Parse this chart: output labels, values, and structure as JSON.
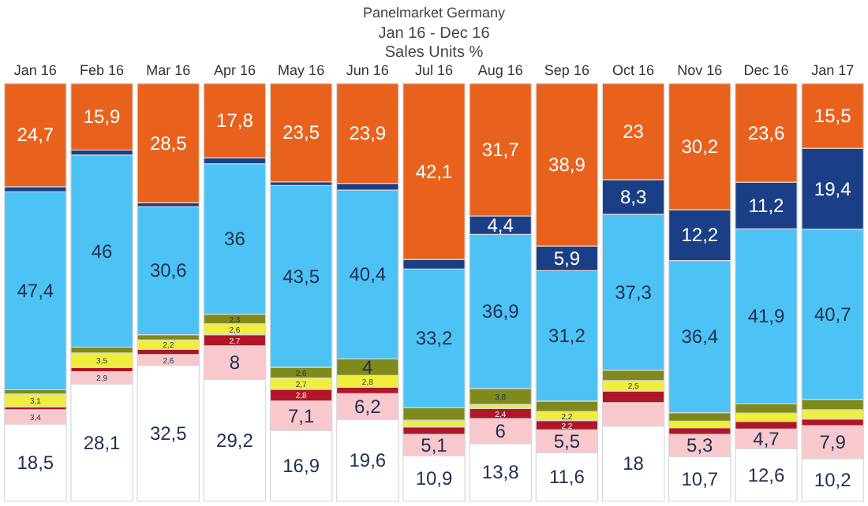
{
  "chart_data": {
    "type": "bar",
    "stacked": true,
    "title": "Panelmarket Germany",
    "subtitle": "Jan 16 - Dec 16\nSales Units %",
    "categories": [
      "Jan 16",
      "Feb 16",
      "Mar 16",
      "Apr 16",
      "May 16",
      "Jun 16",
      "Jul 16",
      "Aug 16",
      "Sep 16",
      "Oct 16",
      "Nov 16",
      "Dec 16",
      "Jan 17"
    ],
    "ylim": [
      0,
      100
    ],
    "tick_labels": "x",
    "legend": false,
    "grid": false,
    "series": [
      {
        "color": "#ffffff",
        "values": [
          18.5,
          28.1,
          32.5,
          29.2,
          16.9,
          19.6,
          10.9,
          13.8,
          11.6,
          18,
          10.7,
          12.6,
          10.2
        ],
        "value_labels": [
          "18,5",
          "28,1",
          "32,5",
          "29,2",
          "16,9",
          "19,6",
          "10,9",
          "13,8",
          "11,6",
          "18",
          "10,7",
          "12,6",
          "10,2"
        ]
      },
      {
        "color": "#f8c8cc",
        "values": [
          3.4,
          2.9,
          2.6,
          8,
          7.1,
          6.2,
          5.1,
          6,
          5.5,
          5.6,
          5.3,
          4.7,
          7.9
        ],
        "value_labels": [
          "3,4",
          "2,9",
          "2,6",
          "8",
          "7,1",
          "6,2",
          "5,1",
          "6",
          "5,5",
          null,
          "5,3",
          "4,7",
          "7,9"
        ]
      },
      {
        "color": "#b0152a",
        "values": [
          0.7,
          1.0,
          1.3,
          2.7,
          2.8,
          1.5,
          1.8,
          2.4,
          2.2,
          2.8,
          1.6,
          1.8,
          1.6
        ],
        "value_labels": [
          null,
          null,
          null,
          "2,7",
          "2,8",
          null,
          null,
          "2,4",
          "2,2",
          null,
          null,
          null,
          null
        ]
      },
      {
        "color": "#f0ee3c",
        "values": [
          3.1,
          3.5,
          2.2,
          2.6,
          2.7,
          2.8,
          1.6,
          1.0,
          2.2,
          2.5,
          1.6,
          2.0,
          2.2
        ],
        "value_labels": [
          "3,1",
          "3,5",
          "2,2",
          "2,6",
          "2,7",
          "2,8",
          null,
          null,
          "2,2",
          "2,5",
          null,
          null,
          null
        ]
      },
      {
        "color": "#7f8a1c",
        "values": [
          1.0,
          1.4,
          1.3,
          2.3,
          2.6,
          4,
          3.0,
          3.8,
          2.5,
          2.5,
          2.0,
          2.2,
          2.5
        ],
        "value_labels": [
          null,
          null,
          null,
          "2,3",
          "2,6",
          "4",
          null,
          "3,8",
          null,
          null,
          null,
          null,
          null
        ]
      },
      {
        "color": "#4dc2f5",
        "values": [
          47.4,
          46,
          30.6,
          36,
          43.5,
          40.4,
          33.2,
          36.9,
          31.2,
          37.3,
          36.4,
          41.9,
          40.7
        ],
        "value_labels": [
          "47,4",
          "46",
          "30,6",
          "36",
          "43,5",
          "40,4",
          "33,2",
          "36,9",
          "31,2",
          "37,3",
          "36,4",
          "41,9",
          "40,7"
        ]
      },
      {
        "color": "#1b3f86",
        "values": [
          1.2,
          1.2,
          1.0,
          1.4,
          0.9,
          1.6,
          2.3,
          4.4,
          5.9,
          8.3,
          12.2,
          11.2,
          19.4
        ],
        "value_labels": [
          null,
          null,
          null,
          null,
          null,
          null,
          null,
          "4,4",
          "5,9",
          "8,3",
          "12,2",
          "11,2",
          "19,4"
        ]
      },
      {
        "color": "#e8621e",
        "values": [
          24.7,
          15.9,
          28.5,
          17.8,
          23.5,
          23.9,
          42.1,
          31.7,
          38.9,
          23,
          30.2,
          23.6,
          15.5
        ],
        "value_labels": [
          "24,7",
          "15,9",
          "28,5",
          "17,8",
          "23,5",
          "23,9",
          "42,1",
          "31,7",
          "38,9",
          "23",
          "30,2",
          "23,6",
          "15,5"
        ]
      }
    ]
  }
}
